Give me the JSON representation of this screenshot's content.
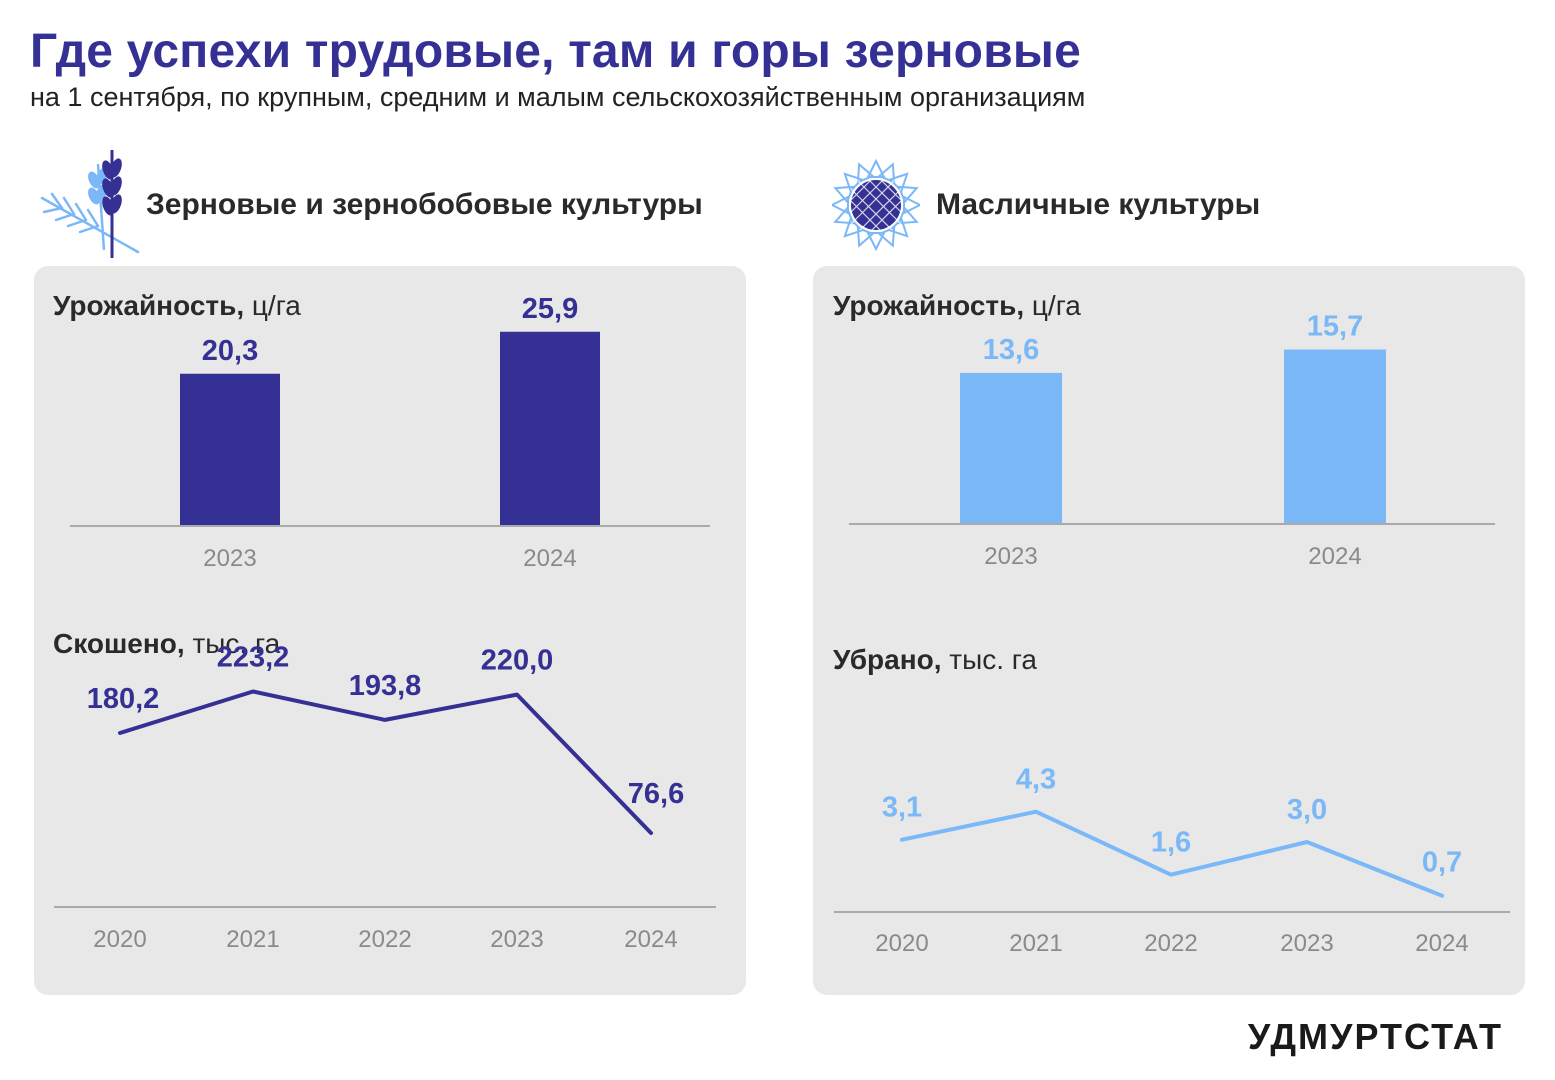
{
  "header": {
    "title": "Где успехи трудовые, там и горы зерновые",
    "subtitle": "на 1 сентября, по крупным, средним и малым сельскохозяйственным организациям"
  },
  "sections": {
    "grain": {
      "label": "Зерновые и зернобобовые культуры",
      "icon": "wheat-icon",
      "yield_title": "Урожайность,",
      "yield_unit": "ц/га",
      "harvest_title": "Скошено,",
      "harvest_unit": "тыс. га"
    },
    "oil": {
      "label": "Масличные культуры",
      "icon": "sunflower-icon",
      "yield_title": "Урожайность,",
      "yield_unit": "ц/га",
      "harvest_title": "Убрано,",
      "harvest_unit": "тыс. га"
    }
  },
  "colors": {
    "dark": "#343094",
    "light": "#7bb8f7",
    "card": "#e8e8e8",
    "axis": "#aaaaaa",
    "tick": "#8a8a8a"
  },
  "chart_data": [
    {
      "id": "grain-yield",
      "type": "bar",
      "categories": [
        "2023",
        "2024"
      ],
      "values": [
        20.3,
        25.9
      ],
      "value_labels": [
        "20,3",
        "25,9"
      ],
      "ylim": [
        0,
        40
      ],
      "color": "#343094",
      "title": "Урожайность, ц/га"
    },
    {
      "id": "oil-yield",
      "type": "bar",
      "categories": [
        "2023",
        "2024"
      ],
      "values": [
        13.6,
        15.7
      ],
      "value_labels": [
        "13,6",
        "15,7"
      ],
      "ylim": [
        0,
        27
      ],
      "color": "#7bb8f7",
      "title": "Урожайность, ц/га"
    },
    {
      "id": "grain-harvest",
      "type": "line",
      "categories": [
        "2020",
        "2021",
        "2022",
        "2023",
        "2024"
      ],
      "values": [
        180.2,
        223.2,
        193.8,
        220.0,
        76.6
      ],
      "value_labels": [
        "180,2",
        "223,2",
        "193,8",
        "220,0",
        "76,6"
      ],
      "ylim": [
        0,
        290
      ],
      "color": "#343094",
      "title": "Скошено, тыс. га"
    },
    {
      "id": "oil-harvest",
      "type": "line",
      "categories": [
        "2020",
        "2021",
        "2022",
        "2023",
        "2024"
      ],
      "values": [
        3.1,
        4.3,
        1.6,
        3.0,
        0.7
      ],
      "value_labels": [
        "3,1",
        "4,3",
        "1,6",
        "3,0",
        "0,7"
      ],
      "ylim": [
        0,
        12
      ],
      "color": "#7bb8f7",
      "title": "Убрано, тыс. га"
    }
  ],
  "footer": {
    "brand": "УДМУРТСТАТ"
  }
}
